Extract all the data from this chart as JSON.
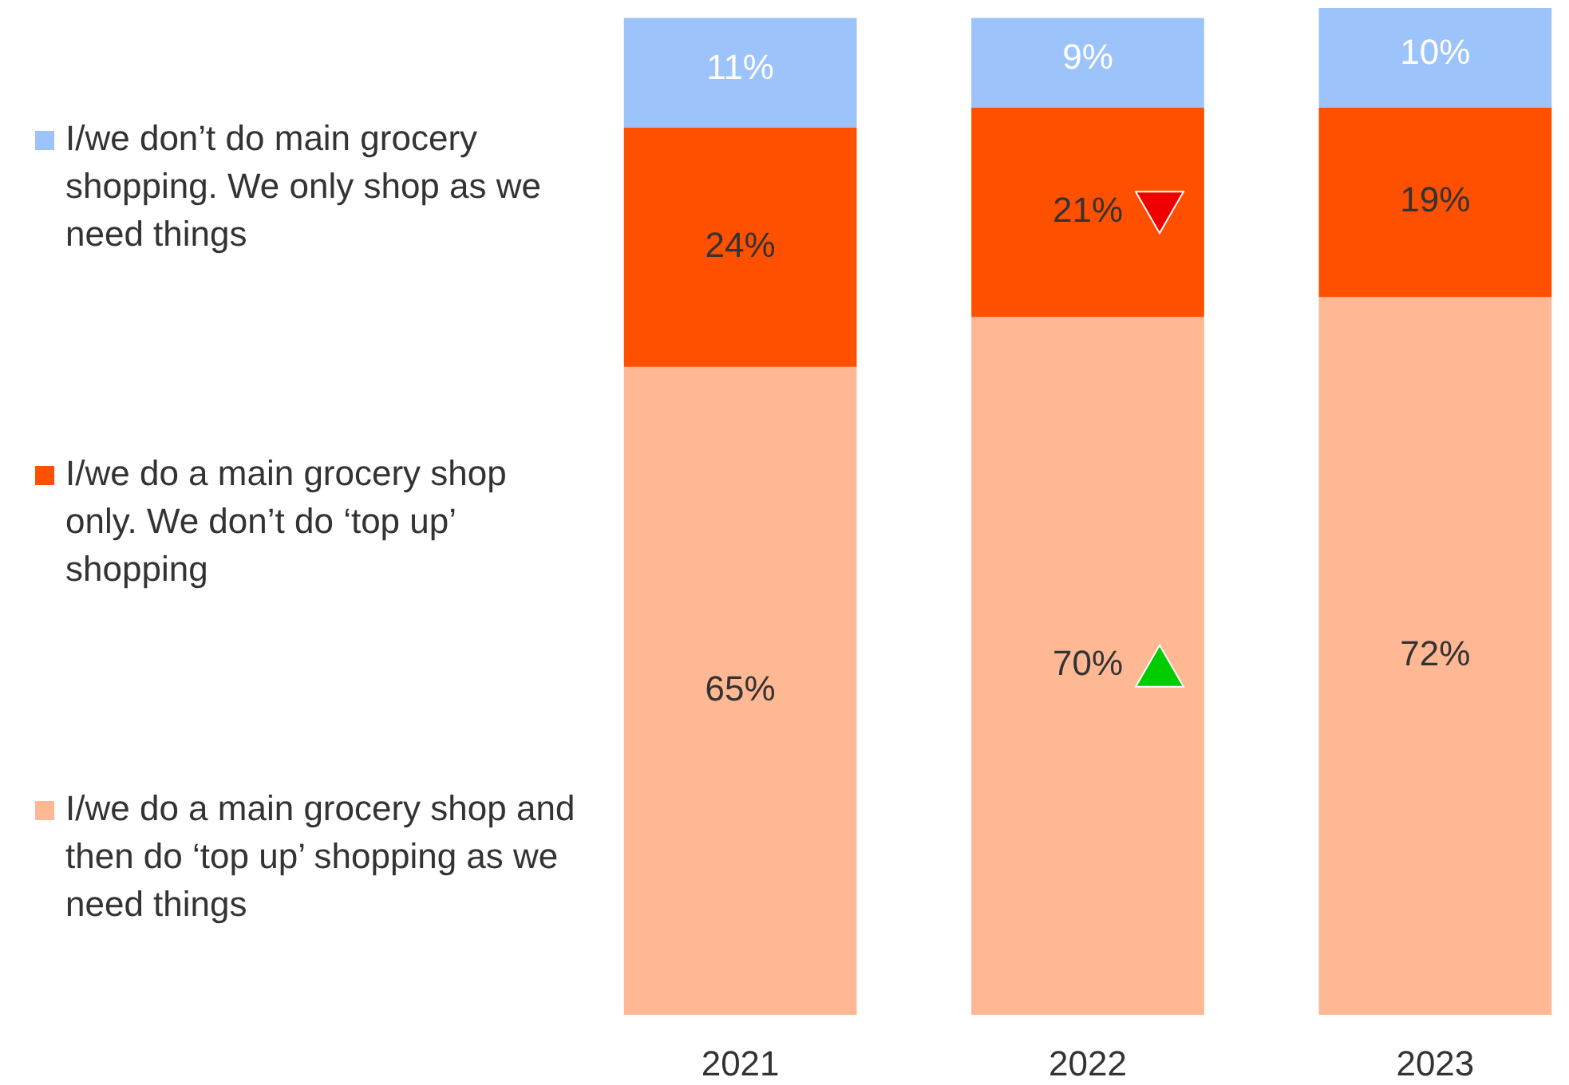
{
  "chart_data": {
    "type": "bar",
    "stacked": true,
    "legend": "left",
    "categories": [
      "2021",
      "2022",
      "2023"
    ],
    "series": [
      {
        "name": "I/we do a main grocery shop and then do ‘top up’ shopping as we need things",
        "color": "#ffb894",
        "values": [
          65,
          70,
          72
        ],
        "value_labels": [
          "65%",
          "70%",
          "72%"
        ]
      },
      {
        "name": "I/we do a main grocery shop only. We don’t do ‘top up’ shopping",
        "color": "#ff5000",
        "values": [
          24,
          21,
          19
        ],
        "value_labels": [
          "24%",
          "21%",
          "19%"
        ]
      },
      {
        "name": "I/we don’t do main grocery shopping. We only shop as we need things",
        "color": "#9dc3fb",
        "values": [
          11,
          9,
          10
        ],
        "value_labels": [
          "11%",
          "9%",
          "10%"
        ]
      }
    ]
  }
}
